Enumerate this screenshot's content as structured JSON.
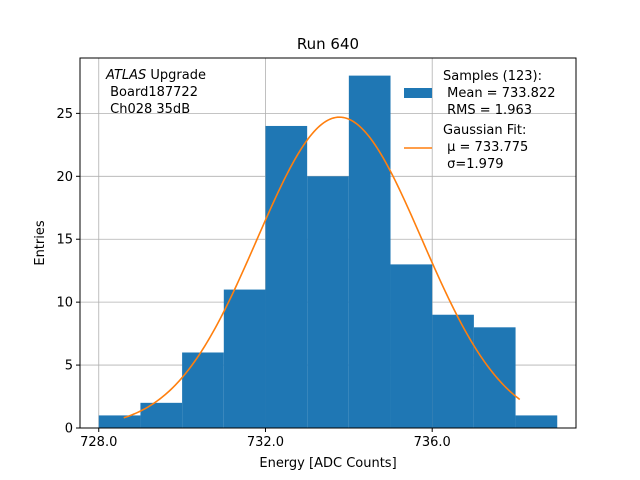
{
  "chart_data": {
    "type": "bar",
    "title": "Run 640",
    "xlabel": "Energy [ADC Counts]",
    "ylabel": "Entries",
    "xlim": [
      727.55,
      739.45
    ],
    "ylim": [
      0,
      29.4
    ],
    "grid": true,
    "xticks": [
      728.0,
      732.0,
      736.0
    ],
    "xtick_labels": [
      "728.0",
      "732.0",
      "736.0"
    ],
    "yticks": [
      0,
      5,
      10,
      15,
      20,
      25
    ],
    "ytick_labels": [
      "0",
      "5",
      "10",
      "15",
      "20",
      "25"
    ],
    "histogram": {
      "name": "Samples (123):",
      "color": "#1f77b4",
      "bin_edges": [
        728.0,
        729.0,
        730.0,
        731.0,
        732.0,
        733.0,
        734.0,
        735.0,
        736.0,
        737.0,
        738.0,
        739.0
      ],
      "counts": [
        1,
        2,
        6,
        11,
        24,
        20,
        28,
        13,
        9,
        8,
        1
      ]
    },
    "fit": {
      "name": "Gaussian Fit:",
      "color": "#ff7f0e",
      "mu": 733.775,
      "sigma": 1.979,
      "amplitude": 24.7,
      "x_range": [
        728.6,
        738.1
      ]
    },
    "legend": {
      "placement": "top-right",
      "samples_lines": [
        "Samples (123):",
        " Mean = 733.822",
        " RMS = 1.963"
      ],
      "fit_lines": [
        "Gaussian Fit:",
        " μ = 733.775",
        " σ=1.979"
      ]
    },
    "annotation": {
      "line1_italic": "ATLAS",
      "line1_rest": " Upgrade",
      "line2": " Board187722",
      "line3": " Ch028 35dB"
    }
  }
}
